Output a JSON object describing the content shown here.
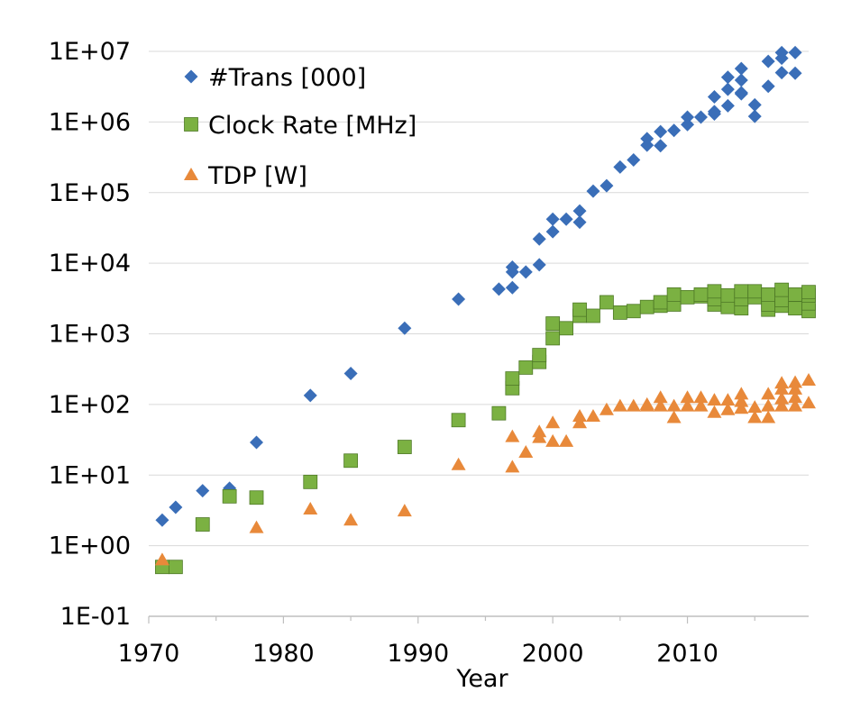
{
  "chart_data": {
    "type": "scatter",
    "xlabel": "Year",
    "ylabel": "",
    "xlim": [
      1970,
      2019
    ],
    "ylim": [
      0.1,
      10000000
    ],
    "yscale": "log",
    "x_ticks": [
      1970,
      1980,
      1990,
      2000,
      2010
    ],
    "x_tick_labels": [
      "1970",
      "1980",
      "1990",
      "2000",
      "2010"
    ],
    "y_ticks": [
      0.1,
      1,
      10,
      100,
      1000,
      10000,
      100000,
      1000000,
      10000000
    ],
    "y_tick_labels": [
      "1E-01",
      "1E+00",
      "1E+01",
      "1E+02",
      "1E+03",
      "1E+04",
      "1E+05",
      "1E+06",
      "1E+07"
    ],
    "grid": "horizontal",
    "legend_position": "top-left",
    "series": [
      {
        "name": "#Trans [000]",
        "color": "#3A6EB8",
        "marker": "diamond",
        "points": [
          [
            1971,
            2.3
          ],
          [
            1972,
            3.5
          ],
          [
            1974,
            6
          ],
          [
            1976,
            6.5
          ],
          [
            1978,
            29
          ],
          [
            1982,
            134
          ],
          [
            1985,
            275
          ],
          [
            1989,
            1200
          ],
          [
            1993,
            3100
          ],
          [
            1996,
            4300
          ],
          [
            1997,
            4500
          ],
          [
            1997,
            7500
          ],
          [
            1997,
            8800
          ],
          [
            1998,
            7500
          ],
          [
            1999,
            9500
          ],
          [
            1999,
            22000
          ],
          [
            2000,
            28000
          ],
          [
            2000,
            42000
          ],
          [
            2001,
            42000
          ],
          [
            2002,
            38000
          ],
          [
            2002,
            55000
          ],
          [
            2003,
            105000
          ],
          [
            2004,
            125000
          ],
          [
            2005,
            230000
          ],
          [
            2006,
            290000
          ],
          [
            2007,
            470000
          ],
          [
            2007,
            580000
          ],
          [
            2008,
            460000
          ],
          [
            2008,
            730000
          ],
          [
            2009,
            760000
          ],
          [
            2010,
            920000
          ],
          [
            2010,
            1170000
          ],
          [
            2011,
            1170000
          ],
          [
            2012,
            1300000
          ],
          [
            2012,
            1400000
          ],
          [
            2012,
            2270000
          ],
          [
            2013,
            1700000
          ],
          [
            2013,
            2900000
          ],
          [
            2013,
            4300000
          ],
          [
            2014,
            2500000
          ],
          [
            2014,
            2600000
          ],
          [
            2014,
            3900000
          ],
          [
            2014,
            5700000
          ],
          [
            2015,
            1200000
          ],
          [
            2015,
            1750000
          ],
          [
            2016,
            3200000
          ],
          [
            2016,
            7200000
          ],
          [
            2017,
            5000000
          ],
          [
            2017,
            8000000
          ],
          [
            2017,
            9600000
          ],
          [
            2018,
            4900000
          ],
          [
            2018,
            9600000
          ]
        ]
      },
      {
        "name": "Clock Rate [MHz]",
        "color": "#7BB142",
        "marker": "square",
        "points": [
          [
            1971,
            0.5
          ],
          [
            1972,
            0.5
          ],
          [
            1974,
            2
          ],
          [
            1976,
            5
          ],
          [
            1978,
            4.8
          ],
          [
            1982,
            8
          ],
          [
            1985,
            16
          ],
          [
            1989,
            25
          ],
          [
            1993,
            60
          ],
          [
            1996,
            75
          ],
          [
            1997,
            170
          ],
          [
            1997,
            233
          ],
          [
            1998,
            333
          ],
          [
            1999,
            400
          ],
          [
            1999,
            500
          ],
          [
            2000,
            866
          ],
          [
            2000,
            1400
          ],
          [
            2001,
            1200
          ],
          [
            2002,
            1800
          ],
          [
            2002,
            2200
          ],
          [
            2003,
            1800
          ],
          [
            2004,
            2800
          ],
          [
            2005,
            2000
          ],
          [
            2006,
            2100
          ],
          [
            2007,
            2400
          ],
          [
            2008,
            2500
          ],
          [
            2008,
            2800
          ],
          [
            2009,
            2600
          ],
          [
            2009,
            3600
          ],
          [
            2010,
            3300
          ],
          [
            2011,
            3400
          ],
          [
            2011,
            3600
          ],
          [
            2012,
            2600
          ],
          [
            2012,
            3100
          ],
          [
            2012,
            4000
          ],
          [
            2013,
            2400
          ],
          [
            2013,
            3500
          ],
          [
            2014,
            2300
          ],
          [
            2014,
            3100
          ],
          [
            2014,
            4000
          ],
          [
            2015,
            3300
          ],
          [
            2015,
            4000
          ],
          [
            2016,
            2200
          ],
          [
            2016,
            2600
          ],
          [
            2016,
            3600
          ],
          [
            2017,
            2500
          ],
          [
            2017,
            3000
          ],
          [
            2017,
            4200
          ],
          [
            2018,
            2300
          ],
          [
            2018,
            3600
          ],
          [
            2019,
            2100
          ],
          [
            2019,
            2700
          ],
          [
            2019,
            3500
          ],
          [
            2019,
            3900
          ]
        ]
      },
      {
        "name": "TDP [W]",
        "color": "#E8893A",
        "marker": "triangle",
        "points": [
          [
            1971,
            0.63
          ],
          [
            1978,
            1.8
          ],
          [
            1982,
            3.3
          ],
          [
            1985,
            2.3
          ],
          [
            1989,
            3.1
          ],
          [
            1993,
            14
          ],
          [
            1997,
            13
          ],
          [
            1997,
            35
          ],
          [
            1998,
            21
          ],
          [
            1999,
            34
          ],
          [
            1999,
            41
          ],
          [
            2000,
            30
          ],
          [
            2000,
            55
          ],
          [
            2001,
            30
          ],
          [
            2002,
            55
          ],
          [
            2002,
            68
          ],
          [
            2003,
            68
          ],
          [
            2004,
            84
          ],
          [
            2005,
            95
          ],
          [
            2006,
            95
          ],
          [
            2007,
            95
          ],
          [
            2007,
            100
          ],
          [
            2008,
            95
          ],
          [
            2008,
            125
          ],
          [
            2009,
            65
          ],
          [
            2009,
            95
          ],
          [
            2010,
            95
          ],
          [
            2010,
            125
          ],
          [
            2011,
            95
          ],
          [
            2011,
            125
          ],
          [
            2012,
            77
          ],
          [
            2012,
            115
          ],
          [
            2013,
            84
          ],
          [
            2013,
            115
          ],
          [
            2014,
            88
          ],
          [
            2014,
            110
          ],
          [
            2014,
            140
          ],
          [
            2015,
            65
          ],
          [
            2015,
            91
          ],
          [
            2016,
            65
          ],
          [
            2016,
            95
          ],
          [
            2016,
            140
          ],
          [
            2017,
            95
          ],
          [
            2017,
            120
          ],
          [
            2017,
            165
          ],
          [
            2017,
            200
          ],
          [
            2018,
            95
          ],
          [
            2018,
            125
          ],
          [
            2018,
            165
          ],
          [
            2018,
            205
          ],
          [
            2019,
            105
          ],
          [
            2019,
            220
          ]
        ]
      }
    ]
  }
}
